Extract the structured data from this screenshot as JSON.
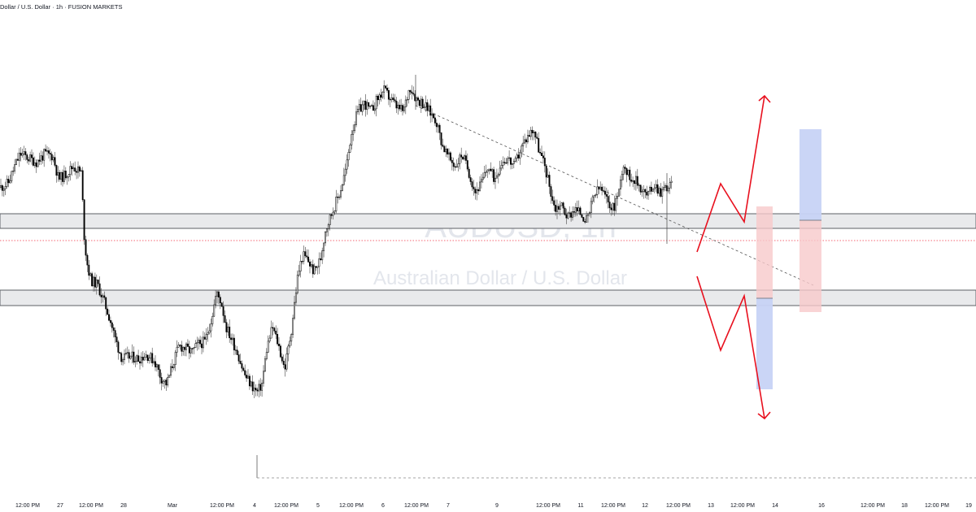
{
  "header": {
    "title": "Dollar / U.S. Dollar · 1h · FUSION MARKETS"
  },
  "watermark": {
    "symbol": "AUDUSD, 1h",
    "description": "Australian Dollar / U.S. Dollar"
  },
  "colors": {
    "candle": "#000000",
    "zone_fill": "#e9eaec",
    "zone_border": "#5d6066",
    "price_line": "#f23645",
    "arrow": "#e8101e",
    "target_blue": "#c7d3f5",
    "target_red": "#f7c9cb",
    "trendline": "#555555"
  },
  "chart_data": {
    "type": "candlestick",
    "timeframe": "1h",
    "x_ticks": [
      "12:00 PM",
      "27",
      "12:00 PM",
      "28",
      "Mar",
      "12:00 PM",
      "4",
      "12:00 PM",
      "5",
      "12:00 PM",
      "6",
      "12:00 PM",
      "7",
      "9",
      "12:00 PM",
      "11",
      "12:00 PM",
      "12",
      "12:00 PM",
      "13",
      "12:00 PM",
      "14",
      "16",
      "12:00 PM",
      "18",
      "12:00 PM",
      "19"
    ],
    "shape": [
      [
        0,
        0.71
      ],
      [
        10,
        0.72
      ],
      [
        18,
        0.76
      ],
      [
        25,
        0.79
      ],
      [
        35,
        0.78
      ],
      [
        45,
        0.77
      ],
      [
        55,
        0.79
      ],
      [
        65,
        0.785
      ],
      [
        72,
        0.73
      ],
      [
        80,
        0.74
      ],
      [
        90,
        0.76
      ],
      [
        100,
        0.745
      ],
      [
        104,
        0.58
      ],
      [
        108,
        0.52
      ],
      [
        112,
        0.49
      ],
      [
        120,
        0.48
      ],
      [
        128,
        0.44
      ],
      [
        135,
        0.4
      ],
      [
        142,
        0.35
      ],
      [
        150,
        0.305
      ],
      [
        160,
        0.31
      ],
      [
        170,
        0.305
      ],
      [
        180,
        0.315
      ],
      [
        190,
        0.3
      ],
      [
        198,
        0.26
      ],
      [
        205,
        0.245
      ],
      [
        212,
        0.29
      ],
      [
        220,
        0.335
      ],
      [
        228,
        0.33
      ],
      [
        236,
        0.32
      ],
      [
        244,
        0.34
      ],
      [
        252,
        0.345
      ],
      [
        260,
        0.4
      ],
      [
        266,
        0.46
      ],
      [
        272,
        0.44
      ],
      [
        278,
        0.38
      ],
      [
        285,
        0.35
      ],
      [
        292,
        0.32
      ],
      [
        300,
        0.27
      ],
      [
        308,
        0.245
      ],
      [
        316,
        0.225
      ],
      [
        322,
        0.245
      ],
      [
        328,
        0.33
      ],
      [
        335,
        0.38
      ],
      [
        342,
        0.34
      ],
      [
        350,
        0.28
      ],
      [
        358,
        0.37
      ],
      [
        366,
        0.5
      ],
      [
        372,
        0.55
      ],
      [
        378,
        0.54
      ],
      [
        386,
        0.51
      ],
      [
        394,
        0.54
      ],
      [
        400,
        0.61
      ],
      [
        410,
        0.66
      ],
      [
        418,
        0.7
      ],
      [
        426,
        0.76
      ],
      [
        432,
        0.84
      ],
      [
        440,
        0.89
      ],
      [
        448,
        0.91
      ],
      [
        456,
        0.89
      ],
      [
        464,
        0.92
      ],
      [
        472,
        0.94
      ],
      [
        480,
        0.92
      ],
      [
        488,
        0.9
      ],
      [
        496,
        0.89
      ],
      [
        504,
        0.95
      ],
      [
        512,
        0.92
      ],
      [
        520,
        0.91
      ],
      [
        528,
        0.89
      ],
      [
        536,
        0.87
      ],
      [
        544,
        0.81
      ],
      [
        552,
        0.78
      ],
      [
        560,
        0.76
      ],
      [
        568,
        0.79
      ],
      [
        576,
        0.75
      ],
      [
        584,
        0.7
      ],
      [
        592,
        0.72
      ],
      [
        600,
        0.76
      ],
      [
        608,
        0.73
      ],
      [
        616,
        0.77
      ],
      [
        624,
        0.78
      ],
      [
        632,
        0.76
      ],
      [
        640,
        0.8
      ],
      [
        648,
        0.83
      ],
      [
        656,
        0.85
      ],
      [
        664,
        0.79
      ],
      [
        670,
        0.76
      ],
      [
        676,
        0.71
      ],
      [
        682,
        0.66
      ],
      [
        690,
        0.67
      ],
      [
        698,
        0.64
      ],
      [
        706,
        0.66
      ],
      [
        714,
        0.65
      ],
      [
        722,
        0.63
      ],
      [
        730,
        0.69
      ],
      [
        738,
        0.71
      ],
      [
        746,
        0.68
      ],
      [
        754,
        0.66
      ],
      [
        762,
        0.71
      ],
      [
        766,
        0.77
      ],
      [
        772,
        0.74
      ],
      [
        780,
        0.73
      ],
      [
        788,
        0.71
      ],
      [
        796,
        0.69
      ],
      [
        804,
        0.72
      ],
      [
        812,
        0.7
      ],
      [
        818,
        0.71
      ],
      [
        825,
        0.715
      ]
    ],
    "zones": [
      {
        "name": "resistance-zone"
      },
      {
        "name": "support-zone"
      }
    ],
    "scenarios": [
      "bullish breakout",
      "bearish breakdown"
    ],
    "x_range": [
      0,
      1200
    ],
    "y_range": [
      0,
      1
    ]
  }
}
